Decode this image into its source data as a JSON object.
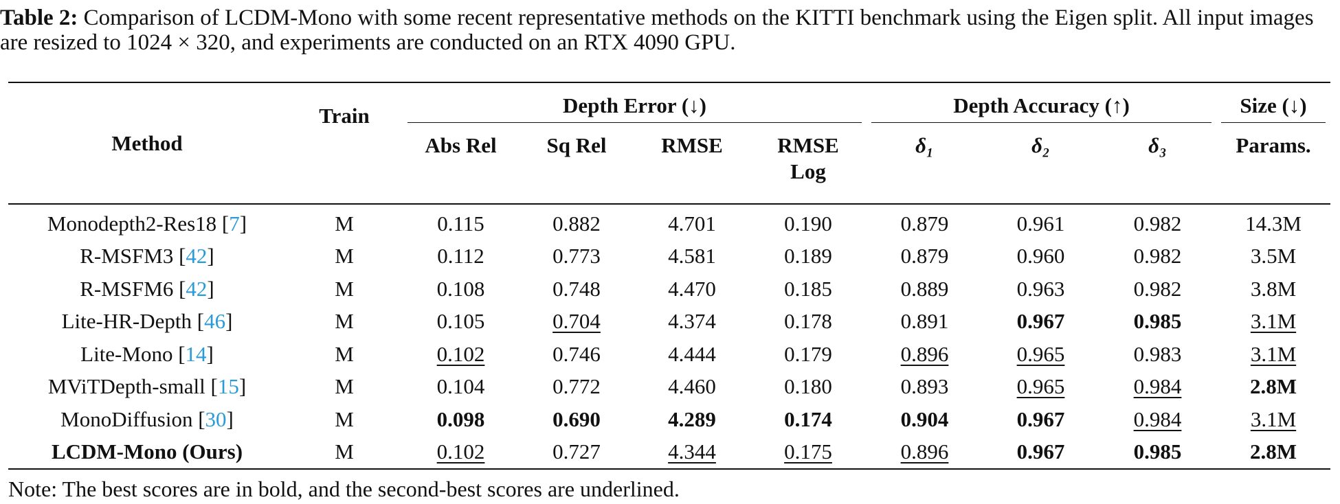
{
  "caption": {
    "label": "Table 2:",
    "text": "Comparison of LCDM-Mono with some recent representative methods on the KITTI benchmark using the Eigen split. All input images are resized to 1024 × 320, and experiments are conducted on an RTX 4090 GPU."
  },
  "table": {
    "header": {
      "method": "Method",
      "train": "Train",
      "groups": [
        "Depth Error (↓)",
        "Depth Accuracy (↑)",
        "Size (↓)"
      ],
      "columns": [
        "Abs Rel",
        "Sq Rel",
        "RMSE",
        "RMSE Log",
        "δ₁",
        "δ₂",
        "δ₃",
        "Params."
      ]
    },
    "rows": [
      [
        [
          "Monodepth2-Res18 [",
          "7",
          "]"
        ],
        "M",
        "0.115",
        "0.882",
        "4.701",
        "0.190",
        "0.879",
        "0.961",
        "0.982",
        "14.3M"
      ],
      [
        [
          "R-MSFM3 [",
          "42",
          "]"
        ],
        "M",
        "0.112",
        "0.773",
        "4.581",
        "0.189",
        "0.879",
        "0.960",
        "0.982",
        "3.5M"
      ],
      [
        [
          "R-MSFM6 [",
          "42",
          "]"
        ],
        "M",
        "0.108",
        "0.748",
        "4.470",
        "0.185",
        "0.889",
        "0.963",
        "0.982",
        "3.8M"
      ],
      [
        [
          "Lite-HR-Depth [",
          "46",
          "]"
        ],
        "M",
        "0.105",
        "0.704",
        "4.374",
        "0.178",
        "0.891",
        "0.967",
        "0.985",
        "3.1M"
      ],
      [
        [
          "Lite-Mono [",
          "14",
          "]"
        ],
        "M",
        "0.102",
        "0.746",
        "4.444",
        "0.179",
        "0.896",
        "0.965",
        "0.983",
        "3.1M"
      ],
      [
        [
          "MViTDepth-small [",
          "15",
          "]"
        ],
        "M",
        "0.104",
        "0.772",
        "4.460",
        "0.180",
        "0.893",
        "0.965",
        "0.984",
        "2.8M"
      ],
      [
        [
          "MonoDiffusion [",
          "30",
          "]"
        ],
        "M",
        "0.098",
        "0.690",
        "4.289",
        "0.174",
        "0.904",
        "0.967",
        "0.984",
        "3.1M"
      ],
      [
        "LCDM-Mono (Ours)",
        "M",
        "0.102",
        "0.727",
        "4.344",
        "0.175",
        "0.896",
        "0.967",
        "0.985",
        "2.8M"
      ]
    ]
  },
  "note": "Note: The best scores are in bold, and the second-best scores are underlined."
}
